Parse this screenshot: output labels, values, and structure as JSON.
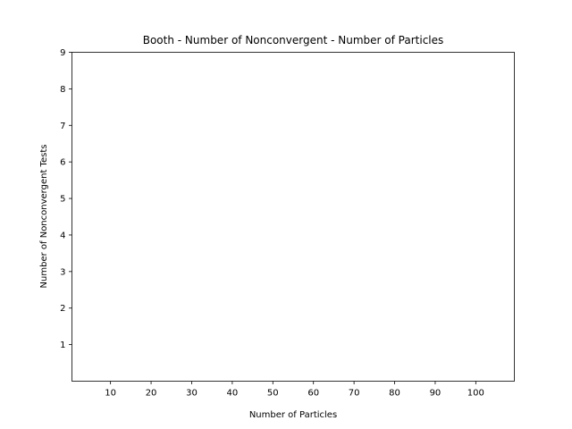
{
  "chart_data": {
    "type": "bar",
    "title": "Booth - Number of Nonconvergent - Number of Particles",
    "xlabel": "Number of Particles",
    "ylabel": "Number of Nonconvergent Tests",
    "categories": [
      "10",
      "20",
      "30",
      "40",
      "50",
      "60",
      "70",
      "80",
      "90",
      "100"
    ],
    "values": [
      0,
      0,
      0,
      0,
      0,
      0,
      0,
      0,
      0,
      0
    ],
    "x_ticks": [
      10,
      20,
      30,
      40,
      50,
      60,
      70,
      80,
      90,
      100
    ],
    "y_ticks": [
      1,
      2,
      3,
      4,
      5,
      6,
      7,
      8,
      9
    ],
    "xlim": [
      0.5,
      109.5
    ],
    "ylim": [
      0,
      9
    ],
    "grid": false,
    "colors": {
      "bar": "#1f77b4",
      "axes": "#000000",
      "background": "#ffffff"
    }
  }
}
